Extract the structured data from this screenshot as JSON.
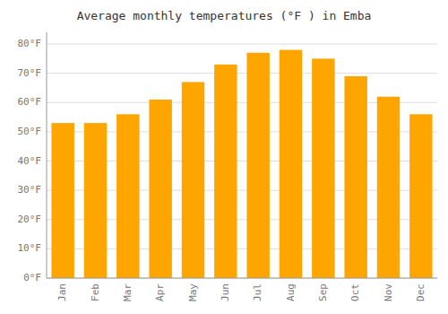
{
  "chart_data": {
    "type": "bar",
    "title": "Average monthly temperatures (°F ) in Emba",
    "categories": [
      "Jan",
      "Feb",
      "Mar",
      "Apr",
      "May",
      "Jun",
      "Jul",
      "Aug",
      "Sep",
      "Oct",
      "Nov",
      "Dec"
    ],
    "values": [
      53,
      53,
      56,
      61,
      67,
      73,
      77,
      78,
      75,
      69,
      62,
      56
    ],
    "color": "#FFA500",
    "ylim": [
      0,
      84
    ],
    "yticks": [
      {
        "value": 0,
        "label": "0°F"
      },
      {
        "value": 10,
        "label": "10°F"
      },
      {
        "value": 20,
        "label": "20°F"
      },
      {
        "value": 30,
        "label": "30°F"
      },
      {
        "value": 40,
        "label": "40°F"
      },
      {
        "value": 50,
        "label": "50°F"
      },
      {
        "value": 60,
        "label": "60°F"
      },
      {
        "value": 70,
        "label": "70°F"
      },
      {
        "value": 80,
        "label": "80°F"
      }
    ],
    "grid": true
  }
}
